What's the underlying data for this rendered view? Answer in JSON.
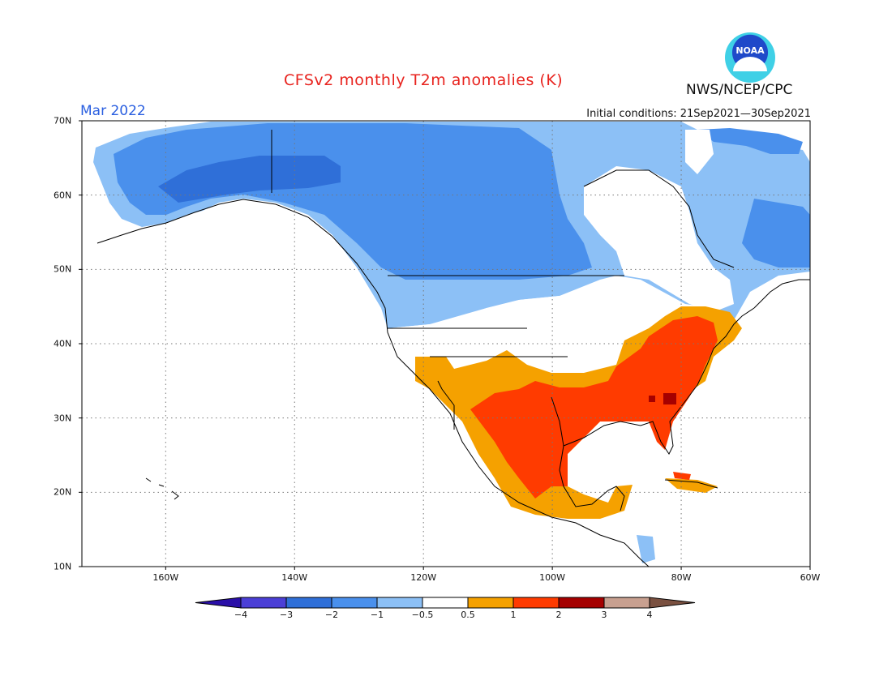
{
  "title": "CFSv2 monthly T2m anomalies (K)",
  "month": "Mar 2022",
  "initial_conditions": "Initial conditions: 21Sep2021—30Sep2021",
  "agency": "NWS/NCEP/CPC",
  "logo_text": "NOAA",
  "map": {
    "lon_range": [
      -173,
      -60
    ],
    "lat_range": [
      10,
      70
    ],
    "lat_ticks": [
      {
        "v": 70,
        "label": "70N"
      },
      {
        "v": 60,
        "label": "60N"
      },
      {
        "v": 50,
        "label": "50N"
      },
      {
        "v": 40,
        "label": "40N"
      },
      {
        "v": 30,
        "label": "30N"
      },
      {
        "v": 20,
        "label": "20N"
      },
      {
        "v": 10,
        "label": "10N"
      }
    ],
    "lon_ticks": [
      {
        "v": -160,
        "label": "160W"
      },
      {
        "v": -140,
        "label": "140W"
      },
      {
        "v": -120,
        "label": "120W"
      },
      {
        "v": -100,
        "label": "100W"
      },
      {
        "v": -80,
        "label": "80W"
      },
      {
        "v": -60,
        "label": "60W"
      }
    ]
  },
  "colorbar": {
    "boundaries": [
      "-4",
      "-3",
      "-2",
      "-1",
      "-0.5",
      "0.5",
      "1",
      "2",
      "3",
      "4"
    ],
    "colors": [
      "#2a0fa8",
      "#4b3fd6",
      "#2f6fd8",
      "#4a90ec",
      "#8cc0f6",
      "#ffffff",
      "#f5a100",
      "#ff3b00",
      "#a50000",
      "#c8a090",
      "#7a5040"
    ]
  },
  "anomaly_regions": [
    {
      "name": "alaska-coast",
      "level": "-0.5",
      "color": "#8cc0f6"
    },
    {
      "name": "canada-north",
      "level": "-1",
      "color": "#4a90ec"
    },
    {
      "name": "northwest-canada-core",
      "level": "-2",
      "color": "#2f6fd8"
    },
    {
      "name": "us-northern-plains",
      "level": "-0.5",
      "color": "#8cc0f6"
    },
    {
      "name": "us-southwest-mexico-north",
      "level": "0.5",
      "color": "#f5a100"
    },
    {
      "name": "mexico-texas-southeast",
      "level": "1",
      "color": "#ff3b00"
    },
    {
      "name": "georgia-spot",
      "level": "2",
      "color": "#a50000"
    },
    {
      "name": "cuba",
      "level": "1",
      "color": "#ff3b00"
    }
  ]
}
